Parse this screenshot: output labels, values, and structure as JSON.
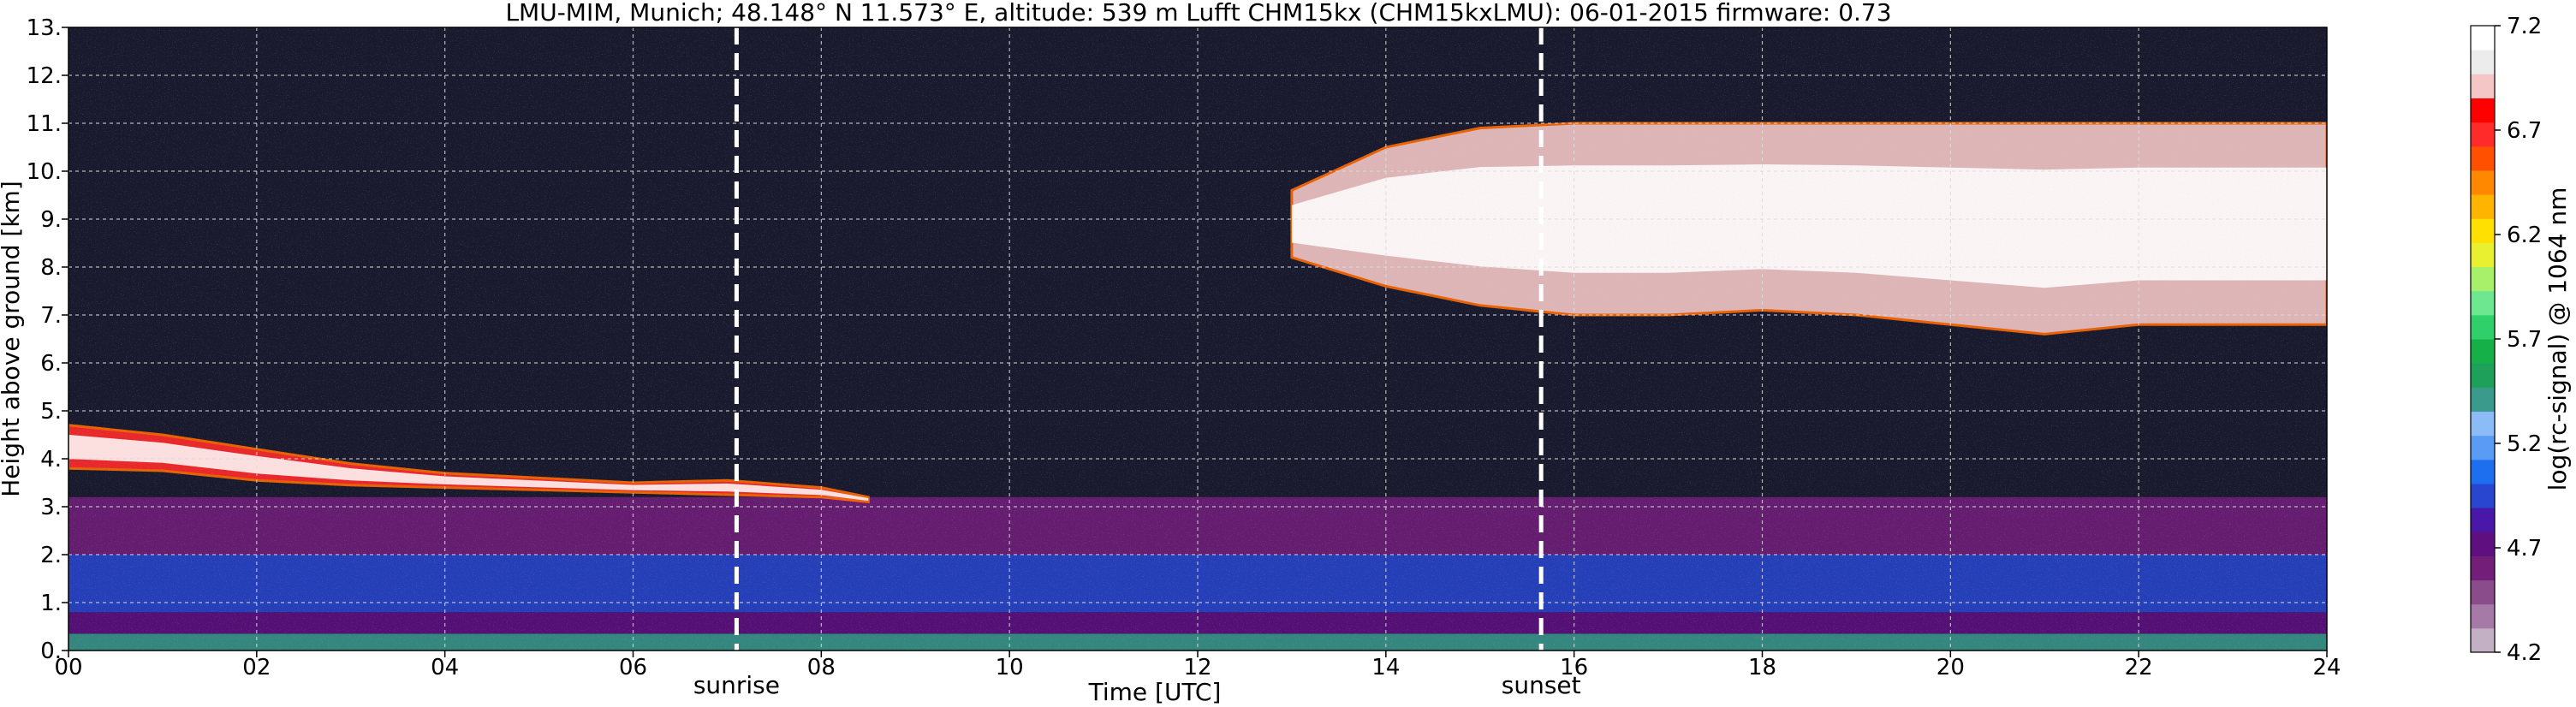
{
  "chart_data": {
    "type": "heatmap",
    "title": "LMU-MIM, Munich; 48.148° N 11.573° E, altitude: 539 m    Lufft CHM15kx (CHM15kxLMU): 06-01-2015    firmware: 0.73",
    "xlabel": "Time [UTC]",
    "ylabel": "Height above ground [km]",
    "xlim": [
      0,
      24
    ],
    "ylim": [
      0,
      13
    ],
    "x_ticks": [
      {
        "value": 0,
        "label": "00"
      },
      {
        "value": 2,
        "label": "02"
      },
      {
        "value": 4,
        "label": "04"
      },
      {
        "value": 6,
        "label": "06"
      },
      {
        "value": 8,
        "label": "08"
      },
      {
        "value": 10,
        "label": "10"
      },
      {
        "value": 12,
        "label": "12"
      },
      {
        "value": 14,
        "label": "14"
      },
      {
        "value": 16,
        "label": "16"
      },
      {
        "value": 18,
        "label": "18"
      },
      {
        "value": 20,
        "label": "20"
      },
      {
        "value": 22,
        "label": "22"
      },
      {
        "value": 24,
        "label": "24"
      }
    ],
    "y_ticks": [
      {
        "value": 0,
        "label": "0."
      },
      {
        "value": 1,
        "label": "1."
      },
      {
        "value": 2,
        "label": "2."
      },
      {
        "value": 3,
        "label": "3."
      },
      {
        "value": 4,
        "label": "4."
      },
      {
        "value": 5,
        "label": "5."
      },
      {
        "value": 6,
        "label": "6."
      },
      {
        "value": 7,
        "label": "7."
      },
      {
        "value": 8,
        "label": "8."
      },
      {
        "value": 9,
        "label": "9."
      },
      {
        "value": 10,
        "label": "10."
      },
      {
        "value": 11,
        "label": "11."
      },
      {
        "value": 12,
        "label": "12."
      },
      {
        "value": 13,
        "label": "13."
      }
    ],
    "grid": true,
    "events": [
      {
        "time": 7.1,
        "label": "sunrise"
      },
      {
        "time": 15.65,
        "label": "sunset"
      }
    ],
    "colorbar": {
      "label": "log(rc-signal) @ 1064 nm",
      "range": [
        4.2,
        7.2
      ],
      "ticks": [
        {
          "value": 4.2,
          "label": "4.2"
        },
        {
          "value": 4.7,
          "label": "4.7"
        },
        {
          "value": 5.2,
          "label": "5.2"
        },
        {
          "value": 5.7,
          "label": "5.7"
        },
        {
          "value": 6.2,
          "label": "6.2"
        },
        {
          "value": 6.7,
          "label": "6.7"
        },
        {
          "value": 7.2,
          "label": "7.2"
        }
      ],
      "levels": [
        "#c4b0c4",
        "#a67aa6",
        "#8a4c8a",
        "#731f7a",
        "#5f0f80",
        "#4a18a8",
        "#2846d0",
        "#1e6ff0",
        "#5a9cf5",
        "#8cbcf8",
        "#3a9b8c",
        "#1fa05a",
        "#16b048",
        "#2fd06a",
        "#6ee890",
        "#a8f06a",
        "#e8f030",
        "#ffe000",
        "#ffb400",
        "#ff8800",
        "#ff5000",
        "#ff2a2a",
        "#ff0000",
        "#f4c6c6",
        "#ececec",
        "#ffffff"
      ]
    },
    "background_color": "#1a1a2e",
    "layers": [
      {
        "name": "surface-layer",
        "x_range": [
          0,
          24
        ],
        "y_range": [
          0,
          0.35
        ],
        "level": 10
      },
      {
        "name": "boundary-layer-purple",
        "x_range": [
          0,
          24
        ],
        "y_range": [
          0.35,
          0.8
        ],
        "level": 4
      },
      {
        "name": "boundary-layer-blue",
        "x_range": [
          0,
          24
        ],
        "y_range": [
          0.8,
          2.0
        ],
        "level": 6
      },
      {
        "name": "residual-layer",
        "x_range": [
          0,
          24
        ],
        "y_range": [
          2.0,
          3.2
        ],
        "level": 3
      },
      {
        "name": "morning-cloud-layer",
        "time": [
          0,
          1,
          2,
          3,
          4,
          5,
          6,
          7,
          8,
          8.5
        ],
        "base": [
          3.8,
          3.75,
          3.55,
          3.45,
          3.4,
          3.35,
          3.3,
          3.25,
          3.2,
          3.1
        ],
        "top": [
          4.7,
          4.5,
          4.2,
          3.9,
          3.7,
          3.6,
          3.5,
          3.55,
          3.4,
          3.2
        ],
        "level": 21
      },
      {
        "name": "high-cloud-layer",
        "time": [
          13.0,
          14.0,
          15.0,
          16.0,
          17.0,
          18.0,
          19.0,
          20.0,
          21.0,
          22.0,
          23.0,
          24.0
        ],
        "base": [
          8.2,
          7.6,
          7.2,
          7.0,
          7.0,
          7.1,
          7.0,
          6.8,
          6.6,
          6.8,
          6.8,
          6.8
        ],
        "top": [
          9.6,
          10.5,
          10.9,
          11.0,
          11.0,
          11.0,
          11.0,
          11.0,
          11.0,
          11.0,
          11.0,
          11.0
        ],
        "level": 23
      }
    ]
  }
}
